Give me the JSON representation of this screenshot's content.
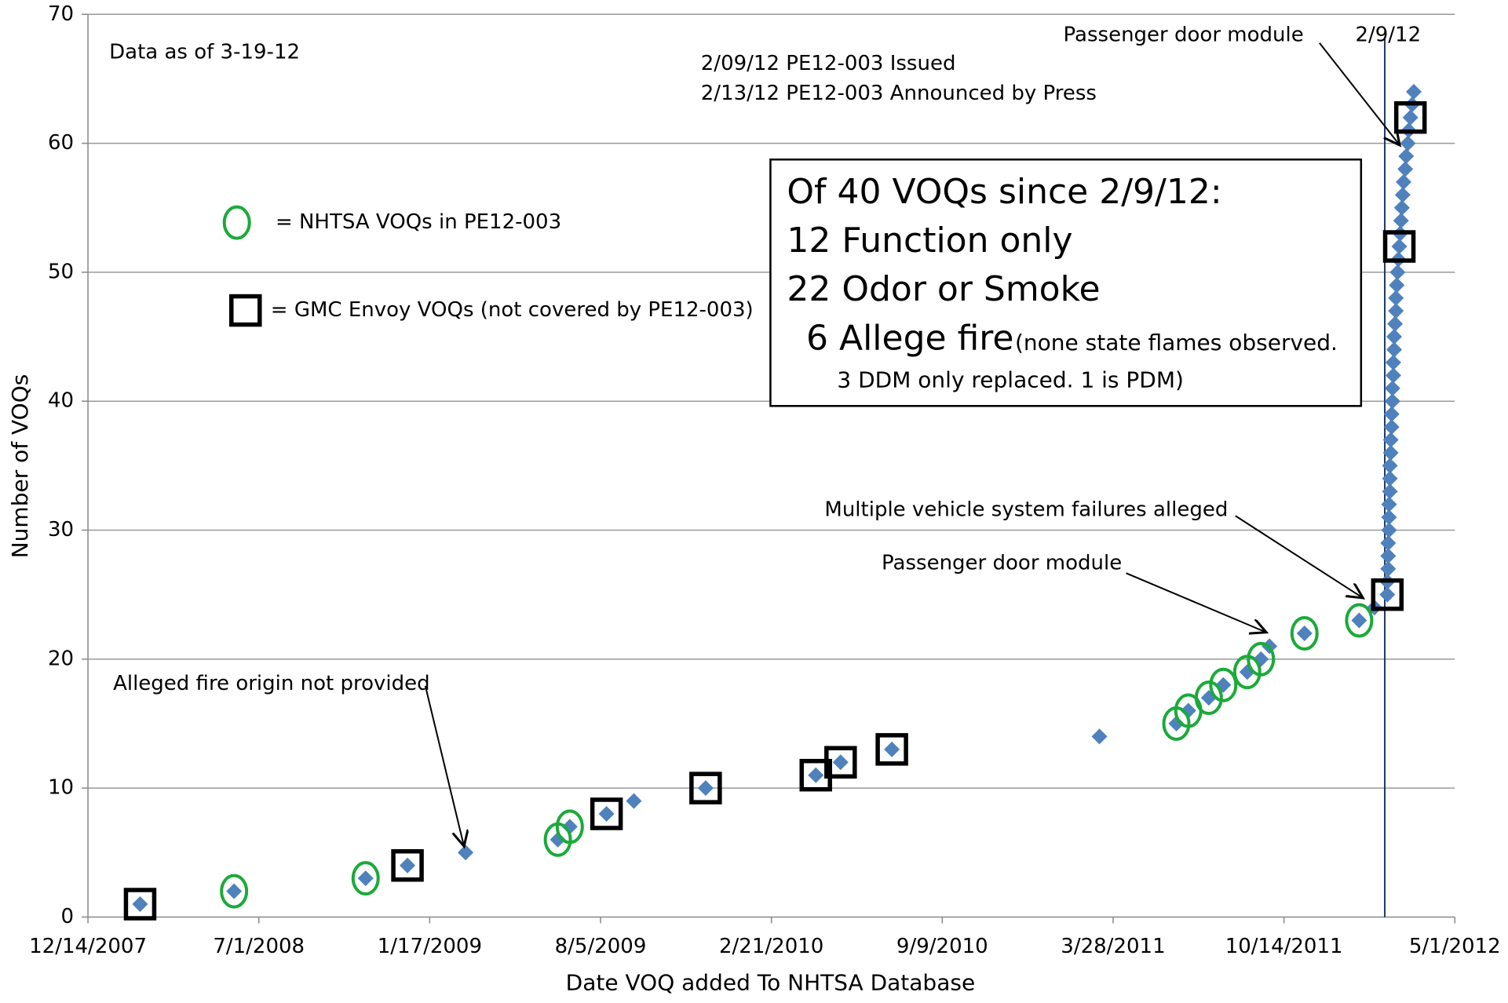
{
  "chart_data": {
    "type": "scatter",
    "xlabel": "Date VOQ added To NHTSA Database",
    "ylabel": "Number of VOQs",
    "x": [
      "2008-02-13",
      "2008-06-02",
      "2008-11-03",
      "2008-12-22",
      "2009-02-28",
      "2009-06-16",
      "2009-06-30",
      "2009-08-12",
      "2009-09-13",
      "2009-12-06",
      "2010-04-14",
      "2010-05-13",
      "2010-07-12",
      "2011-03-12",
      "2011-06-10",
      "2011-06-24",
      "2011-07-18",
      "2011-08-04",
      "2011-09-01",
      "2011-09-17",
      "2011-09-27",
      "2011-11-07",
      "2012-01-10",
      "2012-01-28",
      "2012-02-12",
      "2012-02-12",
      "2012-02-13",
      "2012-02-13",
      "2012-02-13",
      "2012-02-14",
      "2012-02-14",
      "2012-02-14",
      "2012-02-15",
      "2012-02-15",
      "2012-02-15",
      "2012-02-16",
      "2012-02-16",
      "2012-02-17",
      "2012-02-17",
      "2012-02-18",
      "2012-02-18",
      "2012-02-19",
      "2012-02-19",
      "2012-02-20",
      "2012-02-20",
      "2012-02-21",
      "2012-02-22",
      "2012-02-22",
      "2012-02-23",
      "2012-02-24",
      "2012-02-25",
      "2012-02-26",
      "2012-02-27",
      "2012-02-28",
      "2012-02-29",
      "2012-03-01",
      "2012-03-02",
      "2012-03-04",
      "2012-03-05",
      "2012-03-07",
      "2012-03-08",
      "2012-03-10",
      "2012-03-12",
      "2012-03-14"
    ],
    "values": [
      1,
      2,
      3,
      4,
      5,
      6,
      7,
      8,
      9,
      10,
      11,
      12,
      13,
      14,
      15,
      16,
      17,
      18,
      19,
      20,
      21,
      22,
      23,
      24,
      25,
      26,
      27,
      28,
      29,
      30,
      31,
      32,
      33,
      34,
      35,
      36,
      37,
      38,
      39,
      40,
      41,
      42,
      43,
      44,
      45,
      46,
      47,
      48,
      49,
      50,
      51,
      52,
      53,
      54,
      55,
      56,
      57,
      58,
      59,
      60,
      61,
      62,
      63,
      64
    ],
    "color": "#4f81bd",
    "xlim": [
      "2007-12-14",
      "2012-05-01"
    ],
    "xticks": [
      {
        "value": "2007-12-14",
        "label": "12/14/2007"
      },
      {
        "value": "2008-07-01",
        "label": "7/1/2008"
      },
      {
        "value": "2009-01-17",
        "label": "1/17/2009"
      },
      {
        "value": "2009-08-05",
        "label": "8/5/2009"
      },
      {
        "value": "2010-02-21",
        "label": "2/21/2010"
      },
      {
        "value": "2010-09-09",
        "label": "9/9/2010"
      },
      {
        "value": "2011-03-28",
        "label": "3/28/2011"
      },
      {
        "value": "2011-10-14",
        "label": "10/14/2011"
      },
      {
        "value": "2012-05-01",
        "label": "5/1/2012"
      }
    ],
    "ylim": [
      0,
      70
    ],
    "yticks": [
      0,
      10,
      20,
      30,
      40,
      50,
      60,
      70
    ],
    "grid": true,
    "vline": {
      "x": "2012-02-09",
      "label": "2/9/12",
      "color": "#1f3864"
    },
    "highlights": [
      {
        "label": "= NHTSA VOQs in PE12-003",
        "shape": "circle",
        "color": "#1aaa3a",
        "points": [
          2,
          3,
          6,
          7,
          15,
          16,
          17,
          18,
          19,
          20,
          22,
          23
        ]
      },
      {
        "label": "= GMC Envoy VOQs (not covered by PE12-003)",
        "shape": "square",
        "color": "#000000",
        "points": [
          1,
          4,
          8,
          10,
          11,
          12,
          13,
          25,
          52,
          62
        ]
      }
    ],
    "annotations": [
      "Data as of 3-19-12",
      "2/09/12 PE12-003 Issued",
      "2/13/12 PE12-003 Announced by Press",
      "Passenger door module",
      "Multiple vehicle system failures alleged",
      "Passenger door module",
      "Alleged fire origin not provided"
    ],
    "box": [
      "Of 40 VOQs since 2/9/12:",
      "12 Function only",
      "22 Odor or Smoke",
      "6 Allege fire",
      "(none state flames observed.",
      "3 DDM only replaced.  1 is PDM)"
    ]
  }
}
